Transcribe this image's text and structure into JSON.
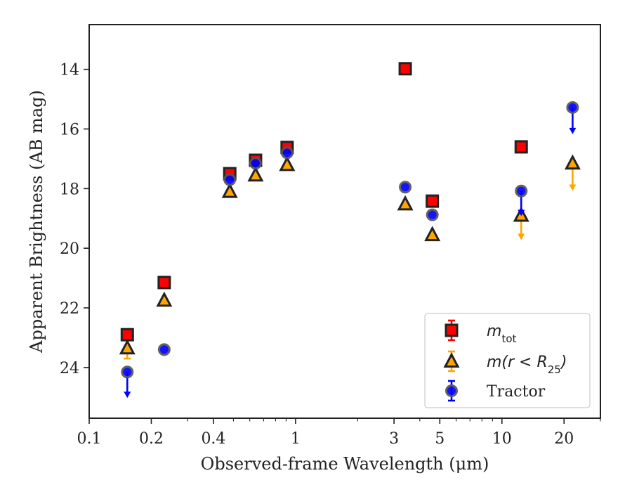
{
  "chart_data": {
    "type": "scatter",
    "title": "",
    "xlabel": "Observed-frame Wavelength (μm)",
    "ylabel": "Apparent Brightness (AB mag)",
    "xscale": "log",
    "xlim": [
      0.1,
      30
    ],
    "ylim": [
      25.7,
      12.5
    ],
    "y_inverted": true,
    "xticks": [
      0.1,
      0.2,
      0.4,
      1,
      3,
      5,
      10,
      20
    ],
    "xtick_labels": [
      "0.1",
      "0.2",
      "0.4",
      "1",
      "3",
      "5",
      "10",
      "20"
    ],
    "yticks": [
      14,
      16,
      18,
      20,
      22,
      24
    ],
    "ytick_labels": [
      "14",
      "16",
      "18",
      "20",
      "22",
      "24"
    ],
    "grid": false,
    "legend_position": "lower-right",
    "series": [
      {
        "name": "m_tot",
        "legend_main": "m",
        "legend_sub": "tot",
        "marker": "square",
        "color": "#ff0000",
        "edge": "#222222",
        "points": [
          {
            "x": 0.153,
            "y": 22.9
          },
          {
            "x": 0.231,
            "y": 21.15
          },
          {
            "x": 0.48,
            "y": 17.5
          },
          {
            "x": 0.64,
            "y": 17.05
          },
          {
            "x": 0.91,
            "y": 16.62
          },
          {
            "x": 3.4,
            "y": 13.98
          },
          {
            "x": 4.6,
            "y": 18.42
          },
          {
            "x": 12.4,
            "y": 16.6
          }
        ]
      },
      {
        "name": "m(r < R_25)",
        "legend_main": "m(r < R",
        "legend_sub": "25",
        "legend_end": ")",
        "marker": "triangle",
        "color": "#ffa500",
        "edge": "#222222",
        "points": [
          {
            "x": 0.153,
            "y": 23.35,
            "upper_limit": false,
            "err": 0.35
          },
          {
            "x": 0.231,
            "y": 21.75
          },
          {
            "x": 0.48,
            "y": 18.1
          },
          {
            "x": 0.64,
            "y": 17.55
          },
          {
            "x": 0.91,
            "y": 17.2
          },
          {
            "x": 3.4,
            "y": 18.52
          },
          {
            "x": 4.6,
            "y": 19.55
          },
          {
            "x": 12.4,
            "y": 18.9,
            "upper_limit": true,
            "arrow_to": 19.7
          },
          {
            "x": 22.0,
            "y": 17.15,
            "upper_limit": true,
            "arrow_to": 18.05
          }
        ]
      },
      {
        "name": "Tractor",
        "marker": "circle",
        "color": "#0000ff",
        "edge": "#555555",
        "points": [
          {
            "x": 0.153,
            "y": 24.15,
            "upper_limit": true,
            "arrow_to": 25.0
          },
          {
            "x": 0.231,
            "y": 23.4
          },
          {
            "x": 0.48,
            "y": 17.7
          },
          {
            "x": 0.64,
            "y": 17.15
          },
          {
            "x": 0.91,
            "y": 16.8
          },
          {
            "x": 3.4,
            "y": 17.95
          },
          {
            "x": 4.6,
            "y": 18.88
          },
          {
            "x": 12.4,
            "y": 18.08,
            "upper_limit": true,
            "arrow_to": 18.9
          },
          {
            "x": 22.0,
            "y": 15.28,
            "upper_limit": true,
            "arrow_to": 16.15
          }
        ]
      }
    ]
  }
}
